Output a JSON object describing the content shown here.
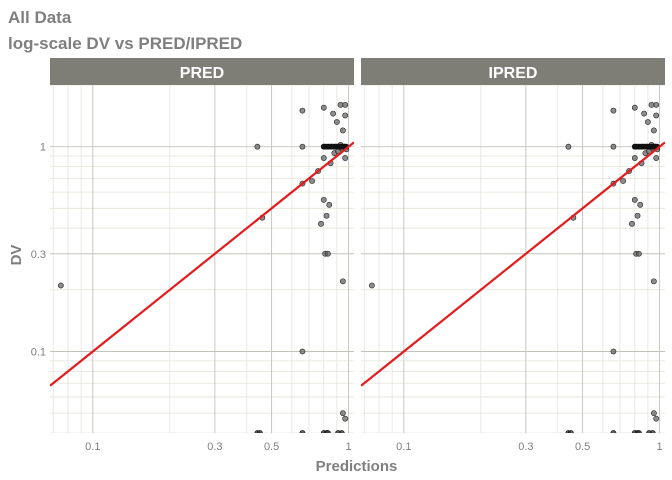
{
  "title": "All Data",
  "subtitle": "log-scale DV vs PRED/IPRED",
  "chart_data": {
    "type": "scatter",
    "xlabel": "Predictions",
    "ylabel": "DV",
    "xscale": "log10",
    "yscale": "log10",
    "xlim": [
      0.068,
      1.05
    ],
    "ylim": [
      0.04,
      2.0
    ],
    "x_ticks": [
      {
        "v": 0.1,
        "label": "0.1"
      },
      {
        "v": 0.3,
        "label": "0.3"
      },
      {
        "v": 0.5,
        "label": "0.5"
      },
      {
        "v": 1,
        "label": "1"
      }
    ],
    "y_ticks": [
      {
        "v": 0.1,
        "label": "0.1"
      },
      {
        "v": 0.3,
        "label": "0.3"
      },
      {
        "v": 1,
        "label": "1"
      }
    ],
    "grid": true,
    "reference_line": {
      "type": "identity",
      "color": "#e41a1c"
    },
    "point_color": "#666666",
    "strip_color": "#7f7e76",
    "panels": [
      {
        "name": "PRED",
        "points": [
          {
            "x": 0.075,
            "y": 0.21
          },
          {
            "x": 0.44,
            "y": 1.0
          },
          {
            "x": 0.46,
            "y": 0.45
          },
          {
            "x": 0.66,
            "y": 0.1
          },
          {
            "x": 0.66,
            "y": 1.5
          },
          {
            "x": 0.66,
            "y": 1.0
          },
          {
            "x": 0.66,
            "y": 0.66
          },
          {
            "x": 0.72,
            "y": 0.68
          },
          {
            "x": 0.76,
            "y": 0.76
          },
          {
            "x": 0.78,
            "y": 0.42
          },
          {
            "x": 0.8,
            "y": 0.55
          },
          {
            "x": 0.8,
            "y": 0.88
          },
          {
            "x": 0.8,
            "y": 1.0
          },
          {
            "x": 0.8,
            "y": 1.55
          },
          {
            "x": 0.81,
            "y": 0.3
          },
          {
            "x": 0.82,
            "y": 0.46
          },
          {
            "x": 0.83,
            "y": 0.3
          },
          {
            "x": 0.84,
            "y": 0.52
          },
          {
            "x": 0.85,
            "y": 0.83
          },
          {
            "x": 0.86,
            "y": 1.0
          },
          {
            "x": 0.87,
            "y": 1.45
          },
          {
            "x": 0.88,
            "y": 0.93
          },
          {
            "x": 0.89,
            "y": 1.0
          },
          {
            "x": 0.9,
            "y": 1.32
          },
          {
            "x": 0.91,
            "y": 0.95
          },
          {
            "x": 0.92,
            "y": 1.0
          },
          {
            "x": 0.93,
            "y": 1.6
          },
          {
            "x": 0.93,
            "y": 1.02
          },
          {
            "x": 0.94,
            "y": 0.98
          },
          {
            "x": 0.95,
            "y": 0.22
          },
          {
            "x": 0.95,
            "y": 1.2
          },
          {
            "x": 0.96,
            "y": 1.0
          },
          {
            "x": 0.97,
            "y": 1.6
          },
          {
            "x": 0.97,
            "y": 1.42
          },
          {
            "x": 0.98,
            "y": 0.97
          },
          {
            "x": 0.97,
            "y": 0.88
          },
          {
            "x": 0.95,
            "y": 0.05
          },
          {
            "x": 0.97,
            "y": 0.047
          }
        ],
        "floor_x": [
          0.44,
          0.45,
          0.66,
          0.8,
          0.82,
          0.83,
          0.91,
          0.94
        ]
      },
      {
        "name": "IPRED",
        "points": [
          {
            "x": 0.075,
            "y": 0.21
          },
          {
            "x": 0.44,
            "y": 1.0
          },
          {
            "x": 0.46,
            "y": 0.45
          },
          {
            "x": 0.66,
            "y": 0.1
          },
          {
            "x": 0.66,
            "y": 1.5
          },
          {
            "x": 0.66,
            "y": 1.0
          },
          {
            "x": 0.66,
            "y": 0.66
          },
          {
            "x": 0.72,
            "y": 0.68
          },
          {
            "x": 0.76,
            "y": 0.76
          },
          {
            "x": 0.78,
            "y": 0.42
          },
          {
            "x": 0.8,
            "y": 0.55
          },
          {
            "x": 0.8,
            "y": 0.88
          },
          {
            "x": 0.8,
            "y": 1.0
          },
          {
            "x": 0.8,
            "y": 1.55
          },
          {
            "x": 0.81,
            "y": 0.3
          },
          {
            "x": 0.82,
            "y": 0.46
          },
          {
            "x": 0.83,
            "y": 0.3
          },
          {
            "x": 0.84,
            "y": 0.52
          },
          {
            "x": 0.85,
            "y": 0.83
          },
          {
            "x": 0.86,
            "y": 1.0
          },
          {
            "x": 0.87,
            "y": 1.45
          },
          {
            "x": 0.88,
            "y": 0.93
          },
          {
            "x": 0.89,
            "y": 1.0
          },
          {
            "x": 0.9,
            "y": 1.32
          },
          {
            "x": 0.91,
            "y": 0.95
          },
          {
            "x": 0.92,
            "y": 1.0
          },
          {
            "x": 0.93,
            "y": 1.6
          },
          {
            "x": 0.93,
            "y": 1.02
          },
          {
            "x": 0.94,
            "y": 0.98
          },
          {
            "x": 0.95,
            "y": 0.22
          },
          {
            "x": 0.95,
            "y": 1.2
          },
          {
            "x": 0.96,
            "y": 1.0
          },
          {
            "x": 0.97,
            "y": 1.6
          },
          {
            "x": 0.97,
            "y": 1.42
          },
          {
            "x": 0.98,
            "y": 0.97
          },
          {
            "x": 0.97,
            "y": 0.88
          },
          {
            "x": 0.95,
            "y": 0.05
          },
          {
            "x": 0.97,
            "y": 0.047
          }
        ],
        "floor_x": [
          0.44,
          0.45,
          0.66,
          0.8,
          0.82,
          0.83,
          0.91,
          0.94
        ]
      }
    ]
  }
}
